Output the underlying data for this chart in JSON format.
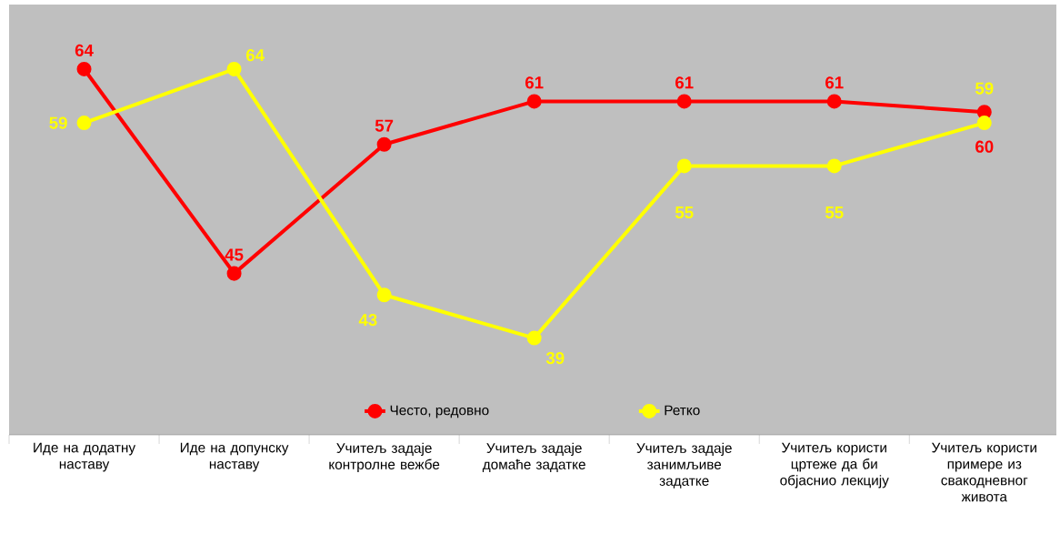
{
  "chart_data": {
    "type": "line",
    "categories": [
      "Иде на додатну наставу",
      "Иде на допунску наставу",
      "Учитељ задаје контролне вежбе",
      "Учитељ задаје домаће задатке",
      "Учитељ задаје занимљиве задатке",
      "Учитељ користи цртеже да би објаснио лекцију",
      "Учитељ користи примере из свакодневног живота"
    ],
    "series": [
      {
        "name": "Често, редовно",
        "color": "#ff0000",
        "values": [
          64,
          45,
          57,
          61,
          61,
          61,
          60
        ]
      },
      {
        "name": "Ретко",
        "color": "#ffff00",
        "values": [
          59,
          64,
          43,
          39,
          55,
          55,
          59
        ]
      }
    ],
    "ylim": [
      30,
      70
    ],
    "data_labels": true,
    "legend": "bottom",
    "marker": "circle",
    "line_style": "solid"
  }
}
